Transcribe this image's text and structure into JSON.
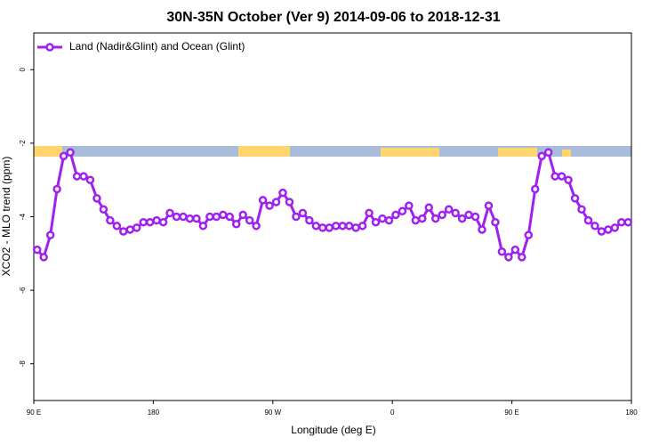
{
  "chart_data": {
    "type": "line",
    "title": "30N-35N October (Ver 9)   2014-09-06 to 2018-12-31",
    "x_label": "Longitude (deg E)",
    "y_label": "XCO2 - MLO trend (ppm)",
    "x": [
      92.5,
      97.5,
      102.5,
      107.5,
      112.5,
      117.5,
      122.5,
      127.5,
      132.5,
      137.5,
      142.5,
      147.5,
      152.5,
      157.5,
      162.5,
      167.5,
      172.5,
      177.5,
      182.5,
      187.5,
      192.5,
      197.5,
      202.5,
      207.5,
      212.5,
      217.5,
      222.5,
      227.5,
      232.5,
      237.5,
      242.5,
      247.5,
      252.5,
      257.5,
      262.5,
      267.5,
      272.5,
      277.5,
      282.5,
      287.5,
      292.5,
      297.5,
      302.5,
      307.5,
      312.5,
      317.5,
      322.5,
      327.5,
      332.5,
      337.5,
      342.5,
      347.5,
      352.5,
      357.5,
      362.5,
      367.5,
      372.5,
      377.5,
      382.5,
      387.5,
      392.5,
      397.5,
      402.5,
      407.5,
      412.5,
      417.5,
      422.5,
      427.5,
      432.5,
      437.5,
      442.5,
      447.5,
      452.5,
      457.5,
      462.5,
      467.5,
      472.5,
      477.5,
      482.5,
      487.5,
      492.5,
      497.5,
      502.5,
      507.5,
      512.5,
      517.5,
      522.5,
      527.5,
      532.5,
      537.5
    ],
    "series": [
      {
        "name": "Land (Nadir&Glint) and Ocean (Glint)",
        "color": "#a020f0",
        "values": [
          -4.9,
          -5.1,
          -4.5,
          -3.25,
          -2.35,
          -2.25,
          -2.9,
          -2.9,
          -3.0,
          -3.5,
          -3.8,
          -4.1,
          -4.25,
          -4.4,
          -4.35,
          -4.3,
          -4.15,
          -4.15,
          -4.1,
          -4.15,
          -3.9,
          -4.0,
          -4.0,
          -4.05,
          -4.05,
          -4.25,
          -4.0,
          -4.0,
          -3.95,
          -4.0,
          -4.2,
          -3.95,
          -4.1,
          -4.25,
          -3.55,
          -3.7,
          -3.6,
          -3.35,
          -3.6,
          -4.0,
          -3.9,
          -4.1,
          -4.25,
          -4.3,
          -4.3,
          -4.25,
          -4.25,
          -4.25,
          -4.3,
          -4.25,
          -3.9,
          -4.15,
          -4.05,
          -4.1,
          -3.95,
          -3.85,
          -3.7,
          -4.1,
          -4.05,
          -3.75,
          -4.05,
          -3.95,
          -3.8,
          -3.9,
          -4.05,
          -3.95,
          -4.0,
          -4.35,
          -3.7,
          -4.15,
          -4.95,
          -5.1,
          -4.9,
          -5.1,
          -4.5,
          -3.25,
          -2.35,
          -2.25,
          -2.9,
          -2.9,
          -3.0,
          -3.5,
          -3.8,
          -4.1,
          -4.25,
          -4.4,
          -4.35,
          -4.3,
          -4.15,
          -4.15
        ]
      }
    ],
    "xlim": [
      90,
      540
    ],
    "xticks": [
      {
        "value": 90,
        "label": "90 E"
      },
      180,
      {
        "value": 270,
        "label": "90 W"
      },
      {
        "value": 360,
        "label": "0"
      },
      {
        "value": 450,
        "label": "90 E"
      },
      {
        "value": 540,
        "label": "180"
      }
    ],
    "ylim": [
      -9,
      1
    ],
    "yticks": [
      0,
      -2,
      -4,
      -6,
      -8
    ],
    "legend": "top-left"
  }
}
